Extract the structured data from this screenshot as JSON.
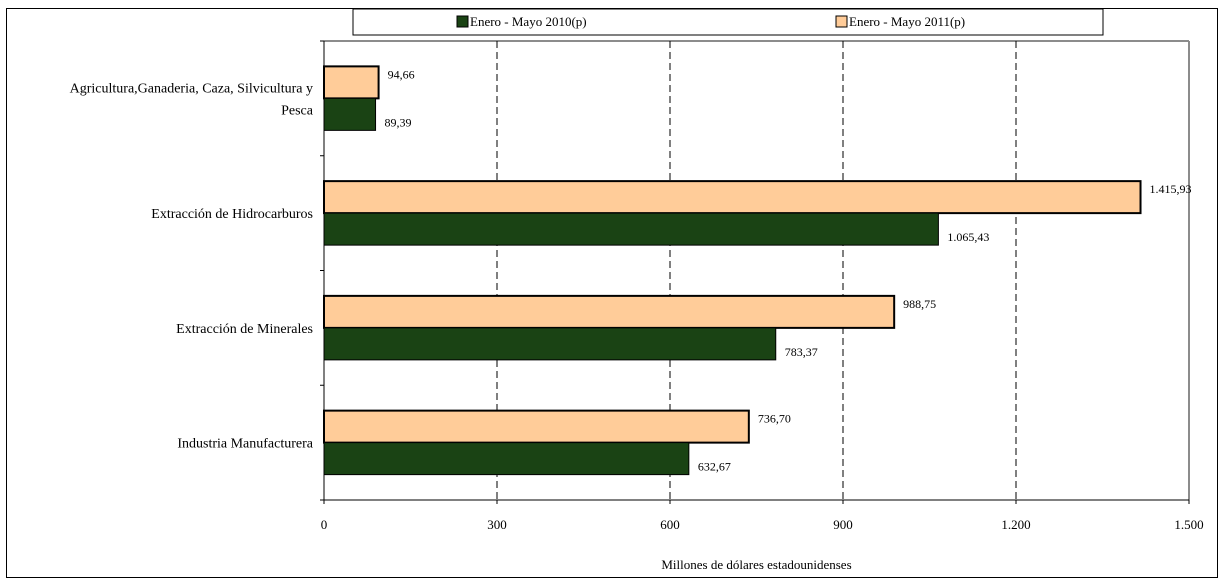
{
  "chart_data": {
    "type": "bar",
    "orientation": "horizontal",
    "title": "",
    "xlabel": "Millones de dólares estadounidenses",
    "ylabel": "",
    "xlim": [
      0,
      1500
    ],
    "x_ticks": [
      0,
      300,
      600,
      900,
      1200,
      1500
    ],
    "x_tick_labels": [
      "0",
      "300",
      "600",
      "900",
      "1.200",
      "1.500"
    ],
    "grid": "vertical dashed",
    "legend_position": "top",
    "categories": [
      "Agricultura,Ganaderia, Caza, Silvicultura y Pesca",
      "Extracción de Hidrocarburos",
      "Extracción de Minerales",
      "Industria Manufacturera"
    ],
    "category_lines": [
      [
        "Agricultura,Ganaderia, Caza, Silvicultura y",
        "Pesca"
      ],
      [
        "Extracción de Hidrocarburos"
      ],
      [
        "Extracción de Minerales"
      ],
      [
        "Industria Manufacturera"
      ]
    ],
    "series": [
      {
        "name": "Enero - Mayo 2010(p)",
        "color": "#1a4314",
        "values": [
          89.39,
          1065.43,
          783.37,
          632.67
        ],
        "labels": [
          "89,39",
          "1.065,43",
          "783,37",
          "632,67"
        ]
      },
      {
        "name": "Enero - Mayo 2011(p)",
        "color": "#ffcc99",
        "values": [
          94.66,
          1415.93,
          988.75,
          736.7
        ],
        "labels": [
          "94,66",
          "1.415,93",
          "988,75",
          "736,70"
        ]
      }
    ]
  }
}
